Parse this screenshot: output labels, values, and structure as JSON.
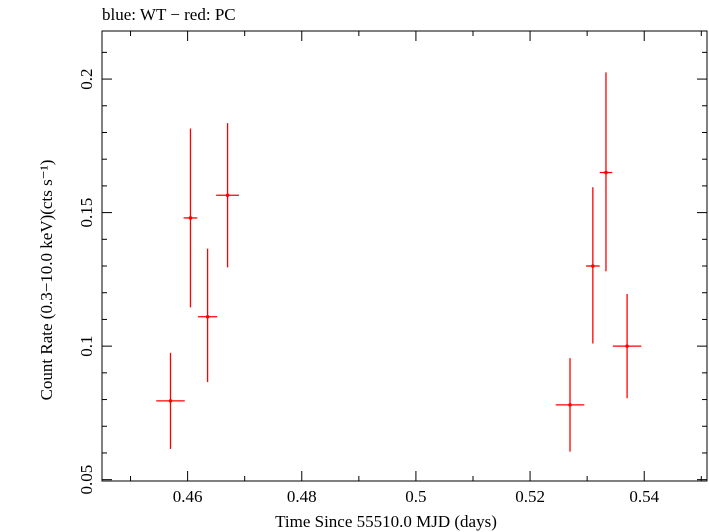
{
  "chart_data": {
    "type": "scatter",
    "title": "blue: WT − red: PC",
    "xlabel": "Time Since 55510.0 MJD (days)",
    "ylabel": "Count Rate (0.3−10.0 keV)(cts s⁻¹)",
    "xlim": [
      0.445,
      0.551
    ],
    "ylim": [
      0.0495,
      0.218
    ],
    "xticks": [
      {
        "value": 0.46,
        "label": "0.46"
      },
      {
        "value": 0.48,
        "label": "0.48"
      },
      {
        "value": 0.5,
        "label": "0.5"
      },
      {
        "value": 0.52,
        "label": "0.52"
      },
      {
        "value": 0.54,
        "label": "0.54"
      }
    ],
    "yticks": [
      {
        "value": 0.05,
        "label": "0.05"
      },
      {
        "value": 0.1,
        "label": "0.1"
      },
      {
        "value": 0.15,
        "label": "0.15"
      },
      {
        "value": 0.2,
        "label": "0.2"
      }
    ],
    "series": [
      {
        "color": "#ff0000",
        "points": [
          {
            "x": 0.457,
            "xerr": 0.0025,
            "y": 0.0795,
            "ylo": 0.0615,
            "yhi": 0.0975
          },
          {
            "x": 0.4605,
            "xerr": 0.0012,
            "y": 0.148,
            "ylo": 0.1145,
            "yhi": 0.1815
          },
          {
            "x": 0.4635,
            "xerr": 0.0017,
            "y": 0.111,
            "ylo": 0.0865,
            "yhi": 0.1365
          },
          {
            "x": 0.467,
            "xerr": 0.002,
            "y": 0.1565,
            "ylo": 0.1295,
            "yhi": 0.1835
          },
          {
            "x": 0.527,
            "xerr": 0.0025,
            "y": 0.078,
            "ylo": 0.0605,
            "yhi": 0.0955
          },
          {
            "x": 0.531,
            "xerr": 0.0012,
            "y": 0.13,
            "ylo": 0.101,
            "yhi": 0.1595
          },
          {
            "x": 0.5333,
            "xerr": 0.0011,
            "y": 0.165,
            "ylo": 0.128,
            "yhi": 0.2025
          },
          {
            "x": 0.537,
            "xerr": 0.0025,
            "y": 0.1,
            "ylo": 0.0805,
            "yhi": 0.1195
          }
        ]
      }
    ]
  }
}
